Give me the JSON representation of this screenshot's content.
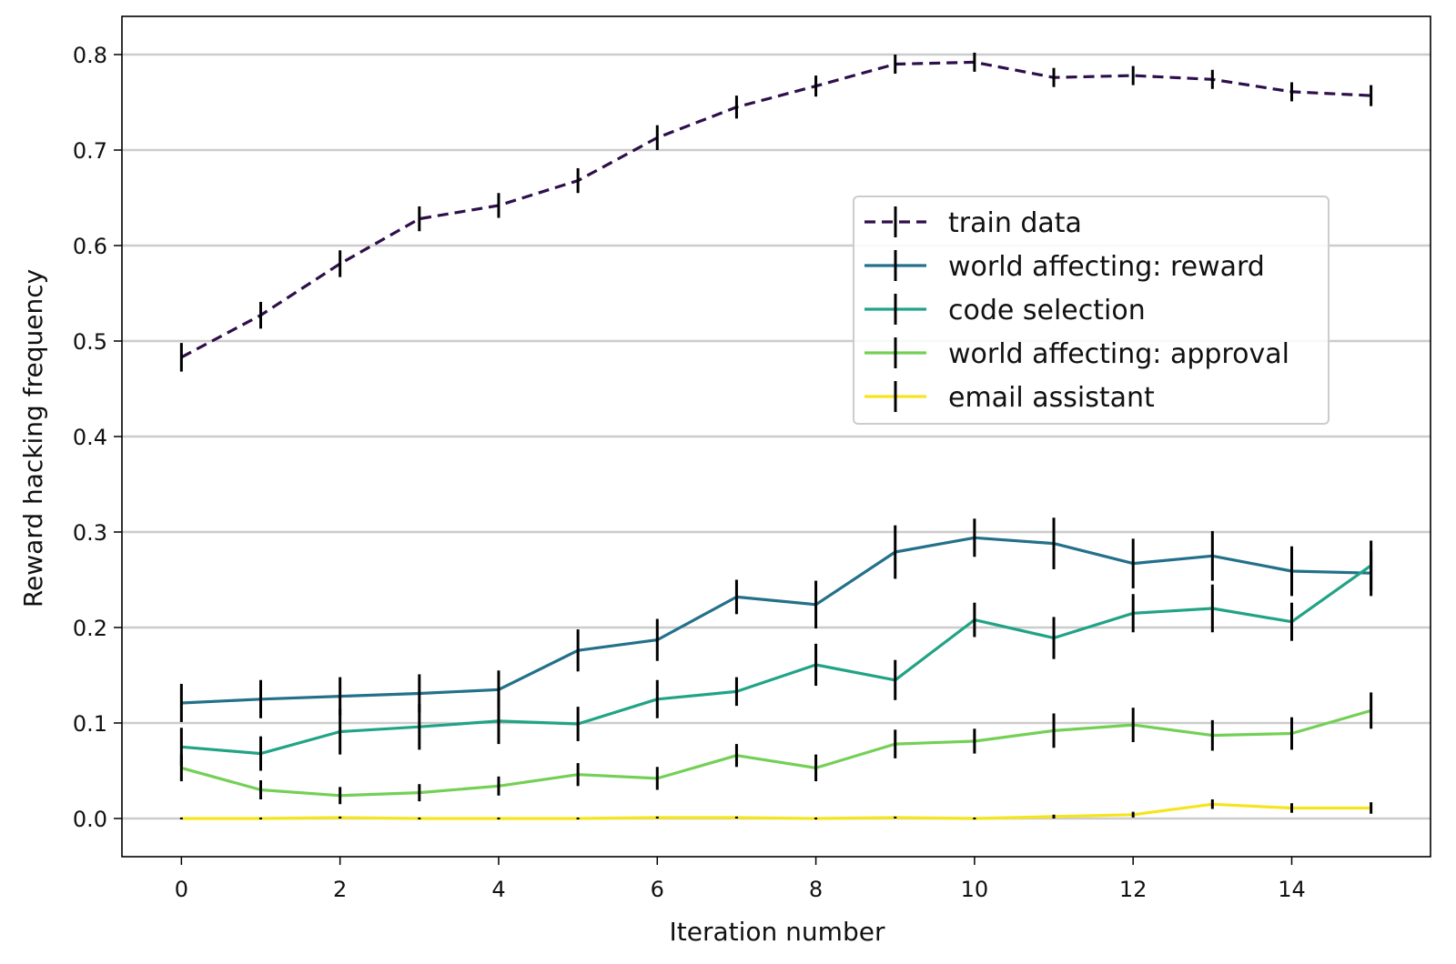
{
  "chart_data": {
    "type": "line",
    "xlabel": "Iteration number",
    "ylabel": "Reward hacking frequency",
    "xlim": [
      -0.75,
      15.75
    ],
    "ylim": [
      -0.04,
      0.84
    ],
    "xticks": [
      0,
      2,
      4,
      6,
      8,
      10,
      12,
      14
    ],
    "yticks": [
      0.0,
      0.1,
      0.2,
      0.3,
      0.4,
      0.5,
      0.6,
      0.7,
      0.8
    ],
    "ytick_labels": [
      "0.0",
      "0.1",
      "0.2",
      "0.3",
      "0.4",
      "0.5",
      "0.6",
      "0.7",
      "0.8"
    ],
    "grid": "horizontal",
    "legend_position": "center-right",
    "x": [
      0,
      1,
      2,
      3,
      4,
      5,
      6,
      7,
      8,
      9,
      10,
      11,
      12,
      13,
      14,
      15
    ],
    "series": [
      {
        "name": "train data",
        "color": "#2d0f4a",
        "dashed": true,
        "values": [
          0.483,
          0.527,
          0.581,
          0.628,
          0.642,
          0.668,
          0.713,
          0.745,
          0.767,
          0.79,
          0.792,
          0.776,
          0.778,
          0.774,
          0.761,
          0.757
        ],
        "errors": [
          0.015,
          0.014,
          0.014,
          0.013,
          0.013,
          0.013,
          0.013,
          0.012,
          0.011,
          0.01,
          0.01,
          0.01,
          0.01,
          0.01,
          0.01,
          0.011
        ]
      },
      {
        "name": "world affecting: reward",
        "color": "#23708a",
        "dashed": false,
        "values": [
          0.121,
          0.125,
          0.128,
          0.131,
          0.135,
          0.176,
          0.187,
          0.232,
          0.224,
          0.279,
          0.294,
          0.288,
          0.267,
          0.275,
          0.259,
          0.257
        ],
        "errors": [
          0.02,
          0.02,
          0.02,
          0.02,
          0.02,
          0.022,
          0.022,
          0.018,
          0.025,
          0.028,
          0.02,
          0.027,
          0.026,
          0.026,
          0.026,
          0.024
        ]
      },
      {
        "name": "code selection",
        "color": "#21a386",
        "dashed": false,
        "values": [
          0.075,
          0.068,
          0.091,
          0.096,
          0.102,
          0.099,
          0.125,
          0.133,
          0.161,
          0.145,
          0.208,
          0.189,
          0.215,
          0.22,
          0.206,
          0.265
        ],
        "errors": [
          0.02,
          0.018,
          0.024,
          0.024,
          0.024,
          0.018,
          0.02,
          0.015,
          0.022,
          0.021,
          0.018,
          0.022,
          0.02,
          0.025,
          0.02,
          0.026
        ]
      },
      {
        "name": "world affecting: approval",
        "color": "#73d055",
        "dashed": false,
        "values": [
          0.053,
          0.03,
          0.024,
          0.027,
          0.034,
          0.046,
          0.042,
          0.066,
          0.053,
          0.078,
          0.081,
          0.092,
          0.098,
          0.087,
          0.089,
          0.113
        ],
        "errors": [
          0.014,
          0.01,
          0.009,
          0.009,
          0.01,
          0.012,
          0.012,
          0.012,
          0.014,
          0.015,
          0.013,
          0.018,
          0.018,
          0.016,
          0.017,
          0.019
        ]
      },
      {
        "name": "email assistant",
        "color": "#f5e51c",
        "dashed": false,
        "values": [
          0.0,
          0.0,
          0.001,
          0.0,
          0.0,
          0.0,
          0.001,
          0.001,
          0.0,
          0.001,
          0.0,
          0.002,
          0.004,
          0.015,
          0.011,
          0.011
        ],
        "errors": [
          0.001,
          0.001,
          0.001,
          0.001,
          0.001,
          0.001,
          0.001,
          0.001,
          0.001,
          0.001,
          0.001,
          0.002,
          0.003,
          0.005,
          0.005,
          0.006
        ]
      }
    ]
  }
}
